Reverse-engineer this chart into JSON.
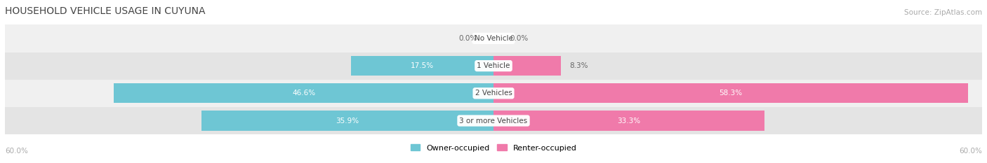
{
  "title": "HOUSEHOLD VEHICLE USAGE IN CUYUNA",
  "source": "Source: ZipAtlas.com",
  "categories": [
    "No Vehicle",
    "1 Vehicle",
    "2 Vehicles",
    "3 or more Vehicles"
  ],
  "owner_values": [
    0.0,
    17.5,
    46.6,
    35.9
  ],
  "renter_values": [
    0.0,
    8.3,
    58.3,
    33.3
  ],
  "owner_color": "#6ec6d4",
  "renter_color": "#f07aaa",
  "row_bg_colors": [
    "#f0f0f0",
    "#e4e4e4"
  ],
  "max_value": 60.0,
  "axis_label_left": "60.0%",
  "axis_label_right": "60.0%",
  "label_color_dark": "#666666",
  "label_color_white": "#ffffff",
  "title_fontsize": 10,
  "source_fontsize": 7.5,
  "bar_label_fontsize": 7.5,
  "legend_fontsize": 8,
  "category_fontsize": 7.5,
  "background_color": "#ffffff"
}
